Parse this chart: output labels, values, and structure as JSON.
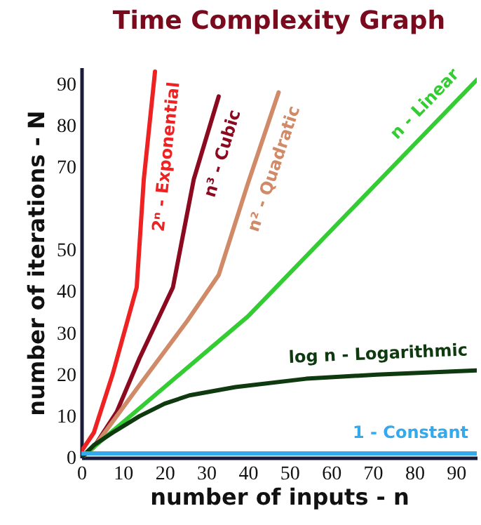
{
  "chart_data": {
    "type": "line",
    "title": "Time Complexity Graph",
    "xlabel": "number of inputs  - n",
    "ylabel": "number of iterations - N",
    "xlim": [
      0,
      95
    ],
    "ylim": [
      0,
      94
    ],
    "xticks": [
      0,
      10,
      20,
      30,
      40,
      50,
      60,
      70,
      80,
      90
    ],
    "yticks": [
      0,
      10,
      20,
      30,
      40,
      50,
      70,
      80,
      90
    ],
    "grid": false,
    "legend": false,
    "marker": "none",
    "line_style": "solid",
    "series": [
      {
        "name": "2ⁿ - Exponential",
        "color": "#ee2222",
        "x": [
          0,
          3,
          7.5,
          13.3,
          15,
          17.7
        ],
        "values": [
          1.5,
          6,
          20,
          41,
          67,
          93
        ]
      },
      {
        "name": "n³ - Cubic",
        "color": "#8b0a20",
        "x": [
          0,
          3,
          8.5,
          14,
          22,
          27,
          33
        ],
        "values": [
          0,
          2.5,
          11,
          24,
          41,
          67,
          87
        ]
      },
      {
        "name": "n² - Quadratic",
        "color": "#d08a68",
        "x": [
          0,
          3,
          8.5,
          14,
          25.5,
          33,
          40,
          47.4
        ],
        "values": [
          0,
          2.5,
          10,
          17.5,
          33,
          44,
          66,
          88
        ]
      },
      {
        "name": "n - Linear",
        "color": "#33cc33",
        "x": [
          0,
          40,
          95
        ],
        "values": [
          0,
          34,
          91
        ]
      },
      {
        "name": "log n - Logarithmic",
        "color": "#0f3a0f",
        "x": [
          0,
          3,
          7.5,
          14,
          20,
          26,
          37,
          54,
          71,
          95
        ],
        "values": [
          0,
          3,
          6,
          10,
          13,
          15,
          17,
          19,
          20,
          21
        ]
      },
      {
        "name": "1 - Constant",
        "color": "#33aaee",
        "x": [
          0,
          95
        ],
        "values": [
          1,
          1
        ]
      }
    ]
  }
}
